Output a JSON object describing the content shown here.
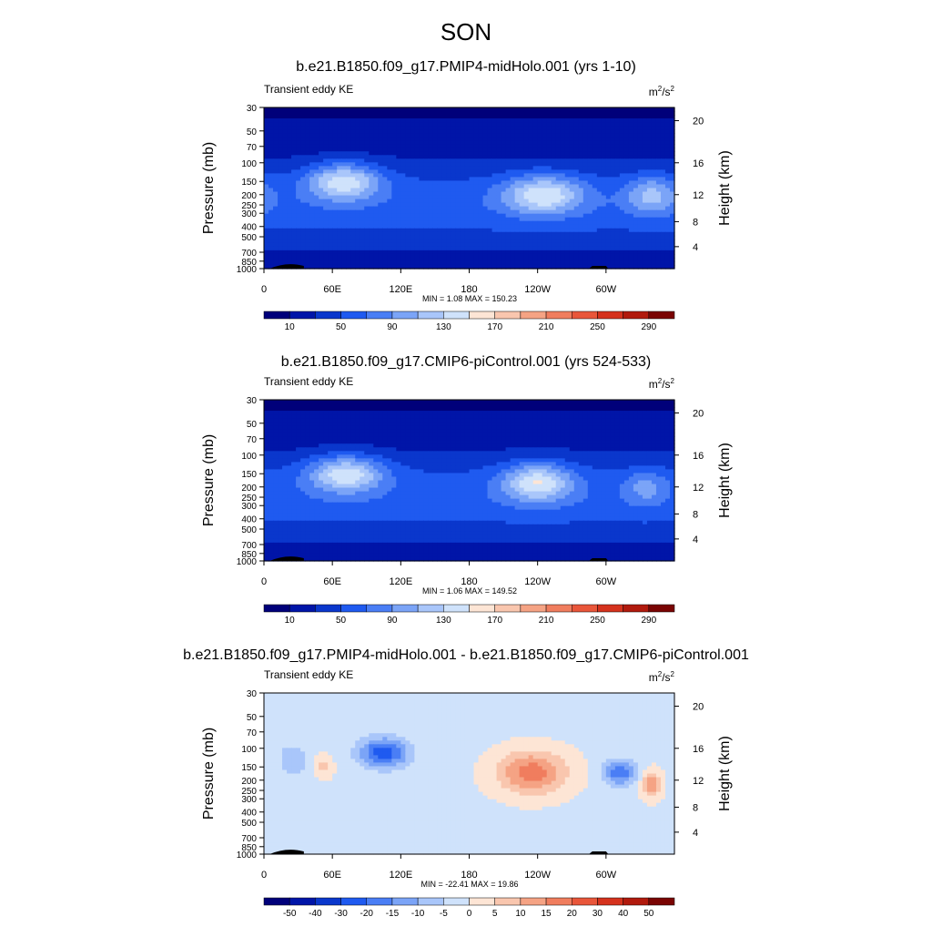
{
  "figure_title": "SON",
  "colors": {
    "diverging": [
      "#00007a",
      "#0015a8",
      "#0a37cc",
      "#1f5af0",
      "#4a7ef5",
      "#7ba4f7",
      "#a9c6fa",
      "#cfe2fb",
      "#fde5d5",
      "#f9c6ae",
      "#f5a384",
      "#f07d5e",
      "#e9563a",
      "#d5321d",
      "#b11a0d",
      "#7a0403"
    ],
    "land": "#000000",
    "frame": "#000000"
  },
  "chart_data": [
    {
      "type": "heatmap",
      "title": "b.e21.B1850.f09_g17.PMIP4-midHolo.001 (yrs 1-10)",
      "left_string": "Transient eddy KE",
      "units": "m²/s²",
      "units_base": "m",
      "units_sup": "2",
      "units_slash": "/s",
      "ylabel": "Pressure (mb)",
      "ylabel_right": "Height (km)",
      "xticks": [
        "0",
        "60E",
        "120E",
        "180",
        "120W",
        "60W"
      ],
      "yticks": [
        "30",
        "50",
        "70",
        "100",
        "150",
        "200",
        "250",
        "300",
        "400",
        "500",
        "700",
        "850",
        "1000"
      ],
      "yticks_right": [
        "20",
        "16",
        "12",
        "8",
        "4"
      ],
      "min_max_label": "MIN =   1.08  MAX = 150.23",
      "colorbar_labels": [
        "10",
        "50",
        "90",
        "130",
        "170",
        "210",
        "250",
        "290"
      ],
      "colorbar_levels": [
        10,
        30,
        50,
        70,
        90,
        110,
        130,
        150,
        170,
        190,
        210,
        230,
        250,
        270,
        290
      ],
      "field": {
        "background_level": 2,
        "jets": [
          {
            "lon": 70,
            "p": 150,
            "peak": 150,
            "lon_width": 32,
            "logp_width": 0.17
          },
          {
            "lon": 245,
            "p": 200,
            "peak": 145,
            "lon_width": 34,
            "logp_width": 0.18
          },
          {
            "lon": 340,
            "p": 200,
            "peak": 115,
            "lon_width": 22,
            "logp_width": 0.17
          }
        ]
      }
    },
    {
      "type": "heatmap",
      "title": "b.e21.B1850.f09_g17.CMIP6-piControl.001 (yrs 524-533)",
      "left_string": "Transient eddy KE",
      "units": "m²/s²",
      "units_base": "m",
      "units_sup": "2",
      "units_slash": "/s",
      "ylabel": "Pressure (mb)",
      "ylabel_right": "Height (km)",
      "xticks": [
        "0",
        "60E",
        "120E",
        "180",
        "120W",
        "60W"
      ],
      "yticks": [
        "30",
        "50",
        "70",
        "100",
        "150",
        "200",
        "250",
        "300",
        "400",
        "500",
        "700",
        "850",
        "1000"
      ],
      "yticks_right": [
        "20",
        "16",
        "12",
        "8",
        "4"
      ],
      "min_max_label": "MIN =   1.06  MAX = 149.52",
      "colorbar_labels": [
        "10",
        "50",
        "90",
        "130",
        "170",
        "210",
        "250",
        "290"
      ],
      "colorbar_levels": [
        10,
        30,
        50,
        70,
        90,
        110,
        130,
        150,
        170,
        190,
        210,
        230,
        250,
        270,
        290
      ],
      "field": {
        "background_level": 2,
        "jets": [
          {
            "lon": 72,
            "p": 150,
            "peak": 150,
            "lon_width": 32,
            "logp_width": 0.17
          },
          {
            "lon": 240,
            "p": 180,
            "peak": 148,
            "lon_width": 30,
            "logp_width": 0.18
          },
          {
            "lon": 335,
            "p": 200,
            "peak": 95,
            "lon_width": 18,
            "logp_width": 0.16
          }
        ]
      }
    },
    {
      "type": "heatmap",
      "title": "b.e21.B1850.f09_g17.PMIP4-midHolo.001 - b.e21.B1850.f09_g17.CMIP6-piControl.001",
      "left_string": "Transient eddy KE",
      "units": "m²/s²",
      "units_base": "m",
      "units_sup": "2",
      "units_slash": "/s",
      "ylabel": "Pressure (mb)",
      "ylabel_right": "Height (km)",
      "xticks": [
        "0",
        "60E",
        "120E",
        "180",
        "120W",
        "60W"
      ],
      "yticks": [
        "30",
        "50",
        "70",
        "100",
        "150",
        "200",
        "250",
        "300",
        "400",
        "500",
        "700",
        "850",
        "1000"
      ],
      "yticks_right": [
        "20",
        "16",
        "12",
        "8",
        "4"
      ],
      "min_max_label": "MIN = -22.41  MAX =  19.86",
      "colorbar_labels": [
        "-50",
        "-40",
        "-30",
        "-20",
        "-15",
        "-10",
        "-5",
        "0",
        "5",
        "10",
        "15",
        "20",
        "30",
        "40",
        "50"
      ],
      "colorbar_levels": [
        -50,
        -40,
        -30,
        -20,
        -15,
        -10,
        -5,
        0,
        5,
        10,
        15,
        20,
        30,
        40,
        50
      ],
      "field": {
        "background_value": -1,
        "anomalies": [
          {
            "lon": 105,
            "p": 110,
            "value": -22,
            "lon_width": 22,
            "logp_width": 0.14
          },
          {
            "lon": 235,
            "p": 170,
            "value": 19,
            "lon_width": 30,
            "logp_width": 0.2
          },
          {
            "lon": 312,
            "p": 170,
            "value": -18,
            "lon_width": 14,
            "logp_width": 0.12
          },
          {
            "lon": 340,
            "p": 220,
            "value": 16,
            "lon_width": 8,
            "logp_width": 0.12
          },
          {
            "lon": 25,
            "p": 130,
            "value": -9,
            "lon_width": 12,
            "logp_width": 0.15
          },
          {
            "lon": 52,
            "p": 150,
            "value": 7,
            "lon_width": 8,
            "logp_width": 0.1
          }
        ]
      }
    }
  ]
}
